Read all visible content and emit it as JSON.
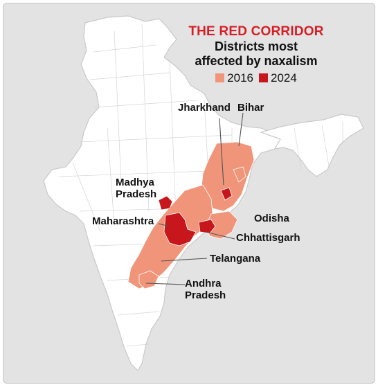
{
  "title": "THE RED CORRIDOR",
  "subtitle_line1": "Districts most",
  "subtitle_line2": "affected by naxalism",
  "legend": [
    {
      "label": "2016",
      "color": "#f0957a"
    },
    {
      "label": "2024",
      "color": "#c8161d"
    }
  ],
  "colors": {
    "land": "#ffffff",
    "border": "#c9c9c9",
    "background": "#e3e3e3",
    "affected_2016": "#f0957a",
    "affected_2024": "#c8161d",
    "leader": "#555555"
  },
  "labels": {
    "jharkhand": "Jharkhand",
    "bihar": "Bihar",
    "madhya_pradesh_1": "Madhya",
    "madhya_pradesh_2": "Pradesh",
    "maharashtra": "Maharashtra",
    "odisha": "Odisha",
    "chhattisgarh": "Chhattisgarh",
    "telangana": "Telangana",
    "andhra_pradesh_1": "Andhra",
    "andhra_pradesh_2": "Pradesh"
  }
}
